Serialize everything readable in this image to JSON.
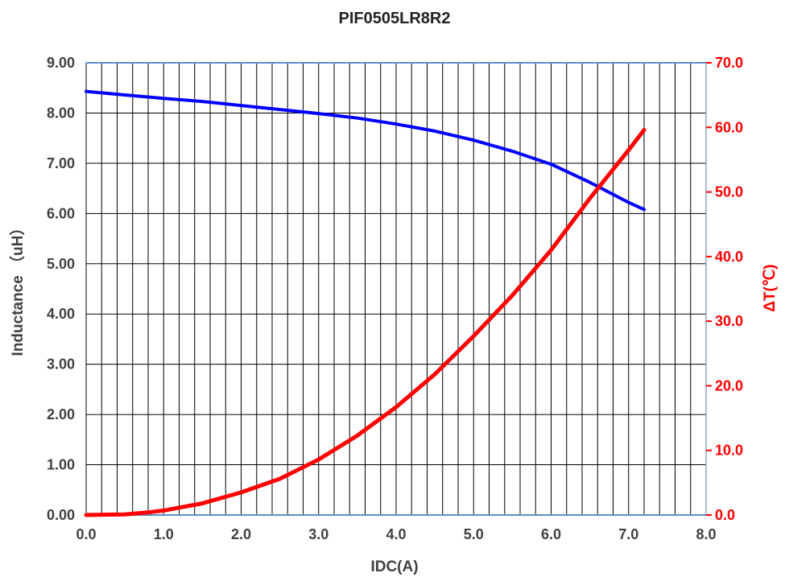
{
  "chart_data": {
    "type": "line",
    "title": "PIF0505LR8R2",
    "xlabel": "IDC(A)",
    "ylabel": "Inductance （uH）",
    "y2label": "ΔT(℃)",
    "xlim": [
      0,
      8
    ],
    "ylim": [
      0,
      9
    ],
    "y2lim": [
      0,
      70
    ],
    "x_ticks": [
      "0.0",
      "1.0",
      "2.0",
      "3.0",
      "4.0",
      "5.0",
      "6.0",
      "7.0",
      "8.0"
    ],
    "y_ticks": [
      "0.00",
      "1.00",
      "2.00",
      "3.00",
      "4.00",
      "5.00",
      "6.00",
      "7.00",
      "8.00",
      "9.00"
    ],
    "y2_ticks": [
      "0.0",
      "10.0",
      "20.0",
      "30.0",
      "40.0",
      "50.0",
      "60.0",
      "70.0"
    ],
    "grid": true,
    "series": [
      {
        "axis": "left",
        "color": "#0000ff",
        "x": [
          0,
          0.5,
          1.0,
          1.5,
          2.0,
          2.5,
          3.0,
          3.5,
          4.0,
          4.5,
          5.0,
          5.5,
          6.0,
          6.5,
          7.0,
          7.2
        ],
        "values": [
          8.43,
          8.36,
          8.29,
          8.23,
          8.15,
          8.07,
          7.99,
          7.9,
          7.78,
          7.64,
          7.46,
          7.24,
          6.98,
          6.62,
          6.22,
          6.08
        ]
      },
      {
        "axis": "right",
        "color": "#ff0000",
        "x": [
          0,
          0.5,
          0.8,
          1.0,
          1.5,
          2.0,
          2.5,
          3.0,
          3.5,
          4.0,
          4.5,
          5.0,
          5.5,
          6.0,
          6.5,
          7.0,
          7.2
        ],
        "values": [
          0.0,
          0.1,
          0.4,
          0.7,
          1.8,
          3.5,
          5.6,
          8.6,
          12.3,
          16.7,
          21.8,
          27.7,
          34.0,
          41.0,
          49.0,
          56.5,
          59.6
        ]
      }
    ]
  },
  "colors": {
    "left_axis": "#404040",
    "right_axis": "#ff0000",
    "grid": "#000000"
  }
}
